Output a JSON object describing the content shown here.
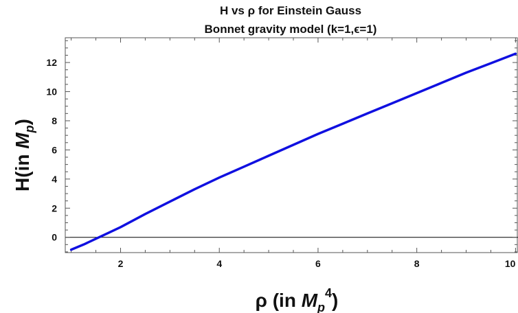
{
  "chart_data": {
    "type": "line",
    "title_line1": "H vs ρ for Einstein Gauss",
    "title_line2": "Bonnet gravity model (k=1,ϵ=1)",
    "xlabel": {
      "main": "ρ (in ",
      "symbol": "M",
      "sub": "p",
      "sup": "4",
      "close": ")"
    },
    "ylabel": {
      "main": "H(in ",
      "symbol": "M",
      "sub": "p",
      "close": ")"
    },
    "xlim": [
      0.88,
      10.05
    ],
    "ylim": [
      -1.05,
      13.7
    ],
    "x_major_ticks": [
      2,
      4,
      6,
      8,
      10
    ],
    "x_tick_labels": [
      "2",
      "4",
      "6",
      "8",
      "10"
    ],
    "y_major_ticks": [
      0,
      2,
      4,
      6,
      8,
      10,
      12
    ],
    "y_tick_labels": [
      "0",
      "2",
      "4",
      "6",
      "8",
      "10",
      "12"
    ],
    "zero_line": true,
    "grid": false,
    "series": [
      {
        "color": "#1010e0",
        "x": [
          1.0,
          1.25,
          1.5,
          1.75,
          2.0,
          2.5,
          3.0,
          3.5,
          4.0,
          4.5,
          5.0,
          5.5,
          6.0,
          6.5,
          7.0,
          7.5,
          8.0,
          8.5,
          9.0,
          9.5,
          10.0
        ],
        "y": [
          -0.85,
          -0.5,
          -0.1,
          0.3,
          0.7,
          1.6,
          2.45,
          3.3,
          4.1,
          4.85,
          5.6,
          6.35,
          7.1,
          7.8,
          8.5,
          9.2,
          9.9,
          10.6,
          11.3,
          11.95,
          12.6
        ]
      }
    ]
  }
}
